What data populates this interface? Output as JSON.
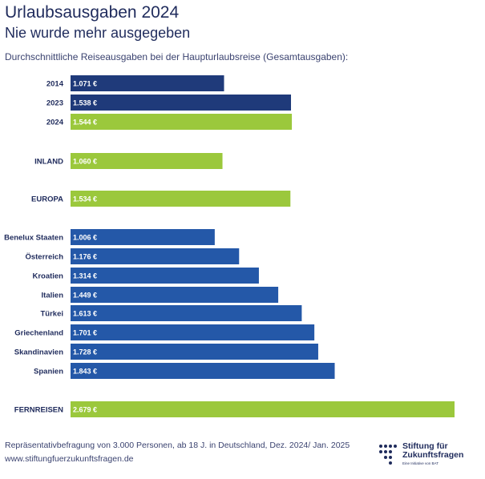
{
  "chart_data": {
    "type": "bar",
    "orientation": "horizontal",
    "title": "Urlaubsausgaben 2024",
    "subtitle": "Nie wurde mehr ausgegeben",
    "description": "Durchschnittliche Reiseausgaben bei der Haupturlaubsreise (Gesamtausgaben):",
    "unit": "€",
    "xlim": [
      0,
      2700
    ],
    "bars": [
      {
        "category": "2014",
        "value": 1071,
        "label": "1.071 €",
        "color": "#1f3a7a"
      },
      {
        "category": "2023",
        "value": 1538,
        "label": "1.538 €",
        "color": "#1f3a7a"
      },
      {
        "category": "2024",
        "value": 1544,
        "label": "1.544 €",
        "color": "#9bc83c"
      },
      {
        "category": "INLAND",
        "value": 1060,
        "label": "1.060 €",
        "color": "#9bc83c"
      },
      {
        "category": "EUROPA",
        "value": 1534,
        "label": "1.534 €",
        "color": "#9bc83c"
      },
      {
        "category": "Benelux Staaten",
        "value": 1006,
        "label": "1.006 €",
        "color": "#2458a8"
      },
      {
        "category": "Österreich",
        "value": 1176,
        "label": "1.176 €",
        "color": "#2458a8"
      },
      {
        "category": "Kroatien",
        "value": 1314,
        "label": "1.314 €",
        "color": "#2458a8"
      },
      {
        "category": "Italien",
        "value": 1449,
        "label": "1.449 €",
        "color": "#2458a8"
      },
      {
        "category": "Türkei",
        "value": 1613,
        "label": "1.613 €",
        "color": "#2458a8"
      },
      {
        "category": "Griechenland",
        "value": 1701,
        "label": "1.701 €",
        "color": "#2458a8"
      },
      {
        "category": "Skandinavien",
        "value": 1728,
        "label": "1.728 €",
        "color": "#2458a8"
      },
      {
        "category": "Spanien",
        "value": 1843,
        "label": "1.843 €",
        "color": "#2458a8"
      },
      {
        "category": "FERNREISEN",
        "value": 2679,
        "label": "2.679 €",
        "color": "#9bc83c"
      }
    ]
  },
  "footer": {
    "source": "Repräsentativbefragung von 3.000 Personen, ab 18 J. in Deutschland, Dez. 2024/ Jan. 2025",
    "website": "www.stiftungfuerzukunftsfragen.de"
  },
  "logo": {
    "line1": "Stiftung für",
    "line2": "Zukunftsfragen",
    "tagline": "Eine Initiative von BAT"
  }
}
